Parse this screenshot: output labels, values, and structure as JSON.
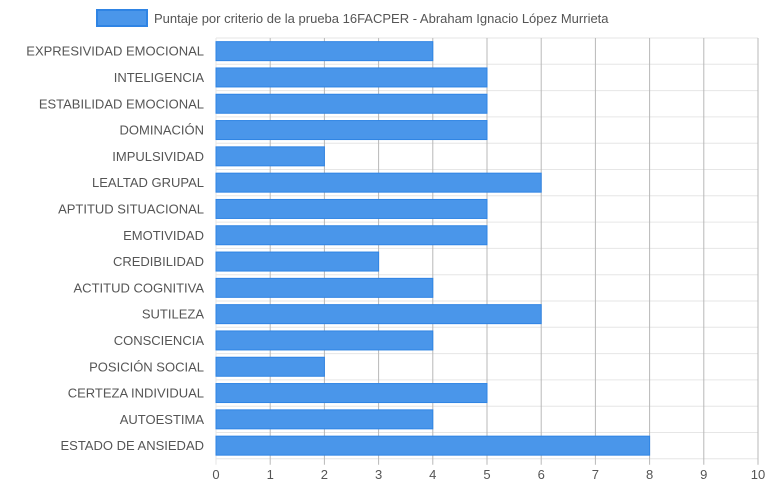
{
  "chart_data": {
    "type": "bar",
    "orientation": "horizontal",
    "categories": [
      "EXPRESIVIDAD EMOCIONAL",
      "INTELIGENCIA",
      "ESTABILIDAD EMOCIONAL",
      "DOMINACIÓN",
      "IMPULSIVIDAD",
      "LEALTAD GRUPAL",
      "APTITUD SITUACIONAL",
      "EMOTIVIDAD",
      "CREDIBILIDAD",
      "ACTITUD COGNITIVA",
      "SUTILEZA",
      "CONSCIENCIA",
      "POSICIÓN SOCIAL",
      "CERTEZA INDIVIDUAL",
      "AUTOESTIMA",
      "ESTADO DE ANSIEDAD"
    ],
    "series": [
      {
        "name": "Puntaje por criterio de la prueba 16FACPER - Abraham Ignacio López Murrieta",
        "values": [
          4,
          5,
          5,
          5,
          2,
          6,
          5,
          5,
          3,
          4,
          6,
          4,
          2,
          5,
          4,
          8
        ]
      }
    ],
    "xlim": [
      0,
      10
    ],
    "x_ticks": [
      0,
      1,
      2,
      3,
      4,
      5,
      6,
      7,
      8,
      9,
      10
    ],
    "grid": true,
    "legend_position": "top-center",
    "colors": {
      "bar_fill": "#4a96ea",
      "bar_stroke": "#2f84e4",
      "grid": "#e6e6e6",
      "grid_major": "#b8b8b8",
      "text": "#555555"
    }
  }
}
